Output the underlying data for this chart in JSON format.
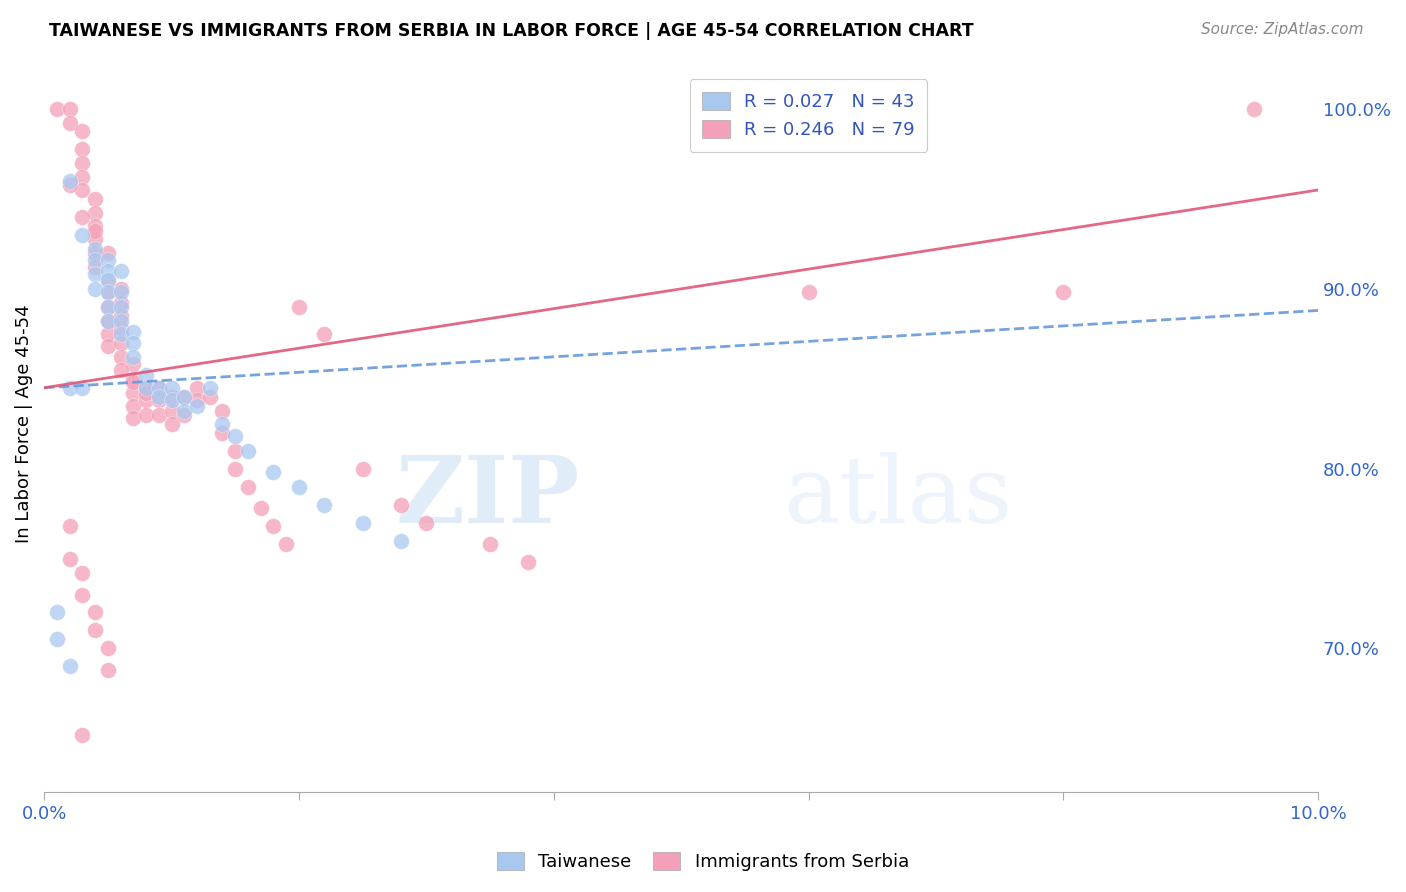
{
  "title": "TAIWANESE VS IMMIGRANTS FROM SERBIA IN LABOR FORCE | AGE 45-54 CORRELATION CHART",
  "source": "Source: ZipAtlas.com",
  "ylabel": "In Labor Force | Age 45-54",
  "x_min": 0.0,
  "x_max": 0.1,
  "y_min": 0.62,
  "y_max": 1.03,
  "color_taiwanese": "#a8c8f0",
  "color_serbia": "#f4a0b8",
  "color_line_taiwanese": "#6699dd",
  "color_line_serbia": "#e05878",
  "tw_line": [
    0.0,
    0.845,
    0.1,
    0.888
  ],
  "sr_line": [
    0.0,
    0.845,
    0.1,
    0.955
  ],
  "taiwanese_pts": [
    [
      0.002,
      0.96
    ],
    [
      0.003,
      0.93
    ],
    [
      0.004,
      0.922
    ],
    [
      0.004,
      0.916
    ],
    [
      0.004,
      0.908
    ],
    [
      0.004,
      0.9
    ],
    [
      0.005,
      0.916
    ],
    [
      0.005,
      0.91
    ],
    [
      0.005,
      0.905
    ],
    [
      0.005,
      0.898
    ],
    [
      0.005,
      0.89
    ],
    [
      0.005,
      0.882
    ],
    [
      0.006,
      0.91
    ],
    [
      0.006,
      0.898
    ],
    [
      0.006,
      0.89
    ],
    [
      0.006,
      0.882
    ],
    [
      0.006,
      0.875
    ],
    [
      0.007,
      0.876
    ],
    [
      0.007,
      0.87
    ],
    [
      0.007,
      0.862
    ],
    [
      0.008,
      0.852
    ],
    [
      0.008,
      0.845
    ],
    [
      0.009,
      0.845
    ],
    [
      0.009,
      0.84
    ],
    [
      0.01,
      0.845
    ],
    [
      0.01,
      0.838
    ],
    [
      0.011,
      0.84
    ],
    [
      0.011,
      0.832
    ],
    [
      0.012,
      0.835
    ],
    [
      0.013,
      0.845
    ],
    [
      0.014,
      0.825
    ],
    [
      0.015,
      0.818
    ],
    [
      0.016,
      0.81
    ],
    [
      0.018,
      0.798
    ],
    [
      0.02,
      0.79
    ],
    [
      0.022,
      0.78
    ],
    [
      0.025,
      0.77
    ],
    [
      0.028,
      0.76
    ],
    [
      0.002,
      0.845
    ],
    [
      0.003,
      0.845
    ],
    [
      0.001,
      0.72
    ],
    [
      0.001,
      0.705
    ],
    [
      0.002,
      0.69
    ]
  ],
  "serbia_pts": [
    [
      0.001,
      1.0
    ],
    [
      0.002,
      1.0
    ],
    [
      0.002,
      0.992
    ],
    [
      0.003,
      0.988
    ],
    [
      0.003,
      0.978
    ],
    [
      0.003,
      0.97
    ],
    [
      0.003,
      0.962
    ],
    [
      0.003,
      0.955
    ],
    [
      0.004,
      0.95
    ],
    [
      0.004,
      0.942
    ],
    [
      0.004,
      0.935
    ],
    [
      0.004,
      0.928
    ],
    [
      0.004,
      0.92
    ],
    [
      0.004,
      0.912
    ],
    [
      0.005,
      0.905
    ],
    [
      0.005,
      0.898
    ],
    [
      0.005,
      0.89
    ],
    [
      0.005,
      0.882
    ],
    [
      0.005,
      0.875
    ],
    [
      0.005,
      0.868
    ],
    [
      0.006,
      0.9
    ],
    [
      0.006,
      0.892
    ],
    [
      0.006,
      0.885
    ],
    [
      0.006,
      0.878
    ],
    [
      0.006,
      0.87
    ],
    [
      0.006,
      0.862
    ],
    [
      0.007,
      0.858
    ],
    [
      0.007,
      0.85
    ],
    [
      0.007,
      0.842
    ],
    [
      0.007,
      0.835
    ],
    [
      0.007,
      0.828
    ],
    [
      0.008,
      0.845
    ],
    [
      0.008,
      0.838
    ],
    [
      0.008,
      0.83
    ],
    [
      0.009,
      0.845
    ],
    [
      0.009,
      0.838
    ],
    [
      0.009,
      0.83
    ],
    [
      0.01,
      0.84
    ],
    [
      0.01,
      0.832
    ],
    [
      0.01,
      0.825
    ],
    [
      0.011,
      0.84
    ],
    [
      0.011,
      0.83
    ],
    [
      0.012,
      0.845
    ],
    [
      0.012,
      0.838
    ],
    [
      0.013,
      0.84
    ],
    [
      0.014,
      0.832
    ],
    [
      0.014,
      0.82
    ],
    [
      0.015,
      0.81
    ],
    [
      0.015,
      0.8
    ],
    [
      0.016,
      0.79
    ],
    [
      0.017,
      0.778
    ],
    [
      0.018,
      0.768
    ],
    [
      0.019,
      0.758
    ],
    [
      0.02,
      0.89
    ],
    [
      0.022,
      0.875
    ],
    [
      0.025,
      0.8
    ],
    [
      0.028,
      0.78
    ],
    [
      0.03,
      0.77
    ],
    [
      0.035,
      0.758
    ],
    [
      0.038,
      0.748
    ],
    [
      0.002,
      0.958
    ],
    [
      0.003,
      0.94
    ],
    [
      0.004,
      0.932
    ],
    [
      0.005,
      0.92
    ],
    [
      0.006,
      0.855
    ],
    [
      0.007,
      0.848
    ],
    [
      0.008,
      0.842
    ],
    [
      0.002,
      0.768
    ],
    [
      0.002,
      0.75
    ],
    [
      0.003,
      0.742
    ],
    [
      0.003,
      0.73
    ],
    [
      0.004,
      0.72
    ],
    [
      0.004,
      0.71
    ],
    [
      0.005,
      0.7
    ],
    [
      0.005,
      0.688
    ],
    [
      0.003,
      0.652
    ],
    [
      0.095,
      1.0
    ],
    [
      0.08,
      0.898
    ],
    [
      0.06,
      0.898
    ]
  ]
}
